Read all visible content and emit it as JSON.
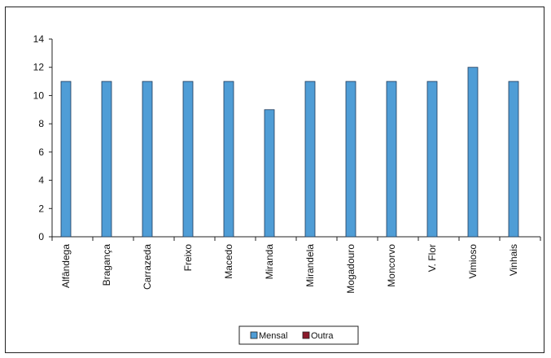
{
  "chart_data": {
    "type": "bar",
    "categories": [
      "Alfândega",
      "Bragança",
      "Carrazeda",
      "Freixo",
      "Macedo",
      "Miranda",
      "Mirandela",
      "Mogadouro",
      "Moncorvo",
      "V. Flor",
      "Vimioso",
      "Vinhais"
    ],
    "series": [
      {
        "name": "Mensal",
        "color": "#4f9dd6",
        "values": [
          11,
          11,
          11,
          11,
          11,
          9,
          11,
          11,
          11,
          11,
          12,
          11
        ]
      },
      {
        "name": "Outra",
        "color": "#8b1a2b",
        "values": [
          0,
          0,
          0,
          0,
          0,
          0,
          0,
          0,
          0,
          0,
          0,
          0
        ]
      }
    ],
    "title": "",
    "xlabel": "",
    "ylabel": "",
    "ylim": [
      0,
      14
    ],
    "yticks": [
      0,
      2,
      4,
      6,
      8,
      10,
      12,
      14
    ],
    "grid": false,
    "legend": "bottom-center"
  }
}
